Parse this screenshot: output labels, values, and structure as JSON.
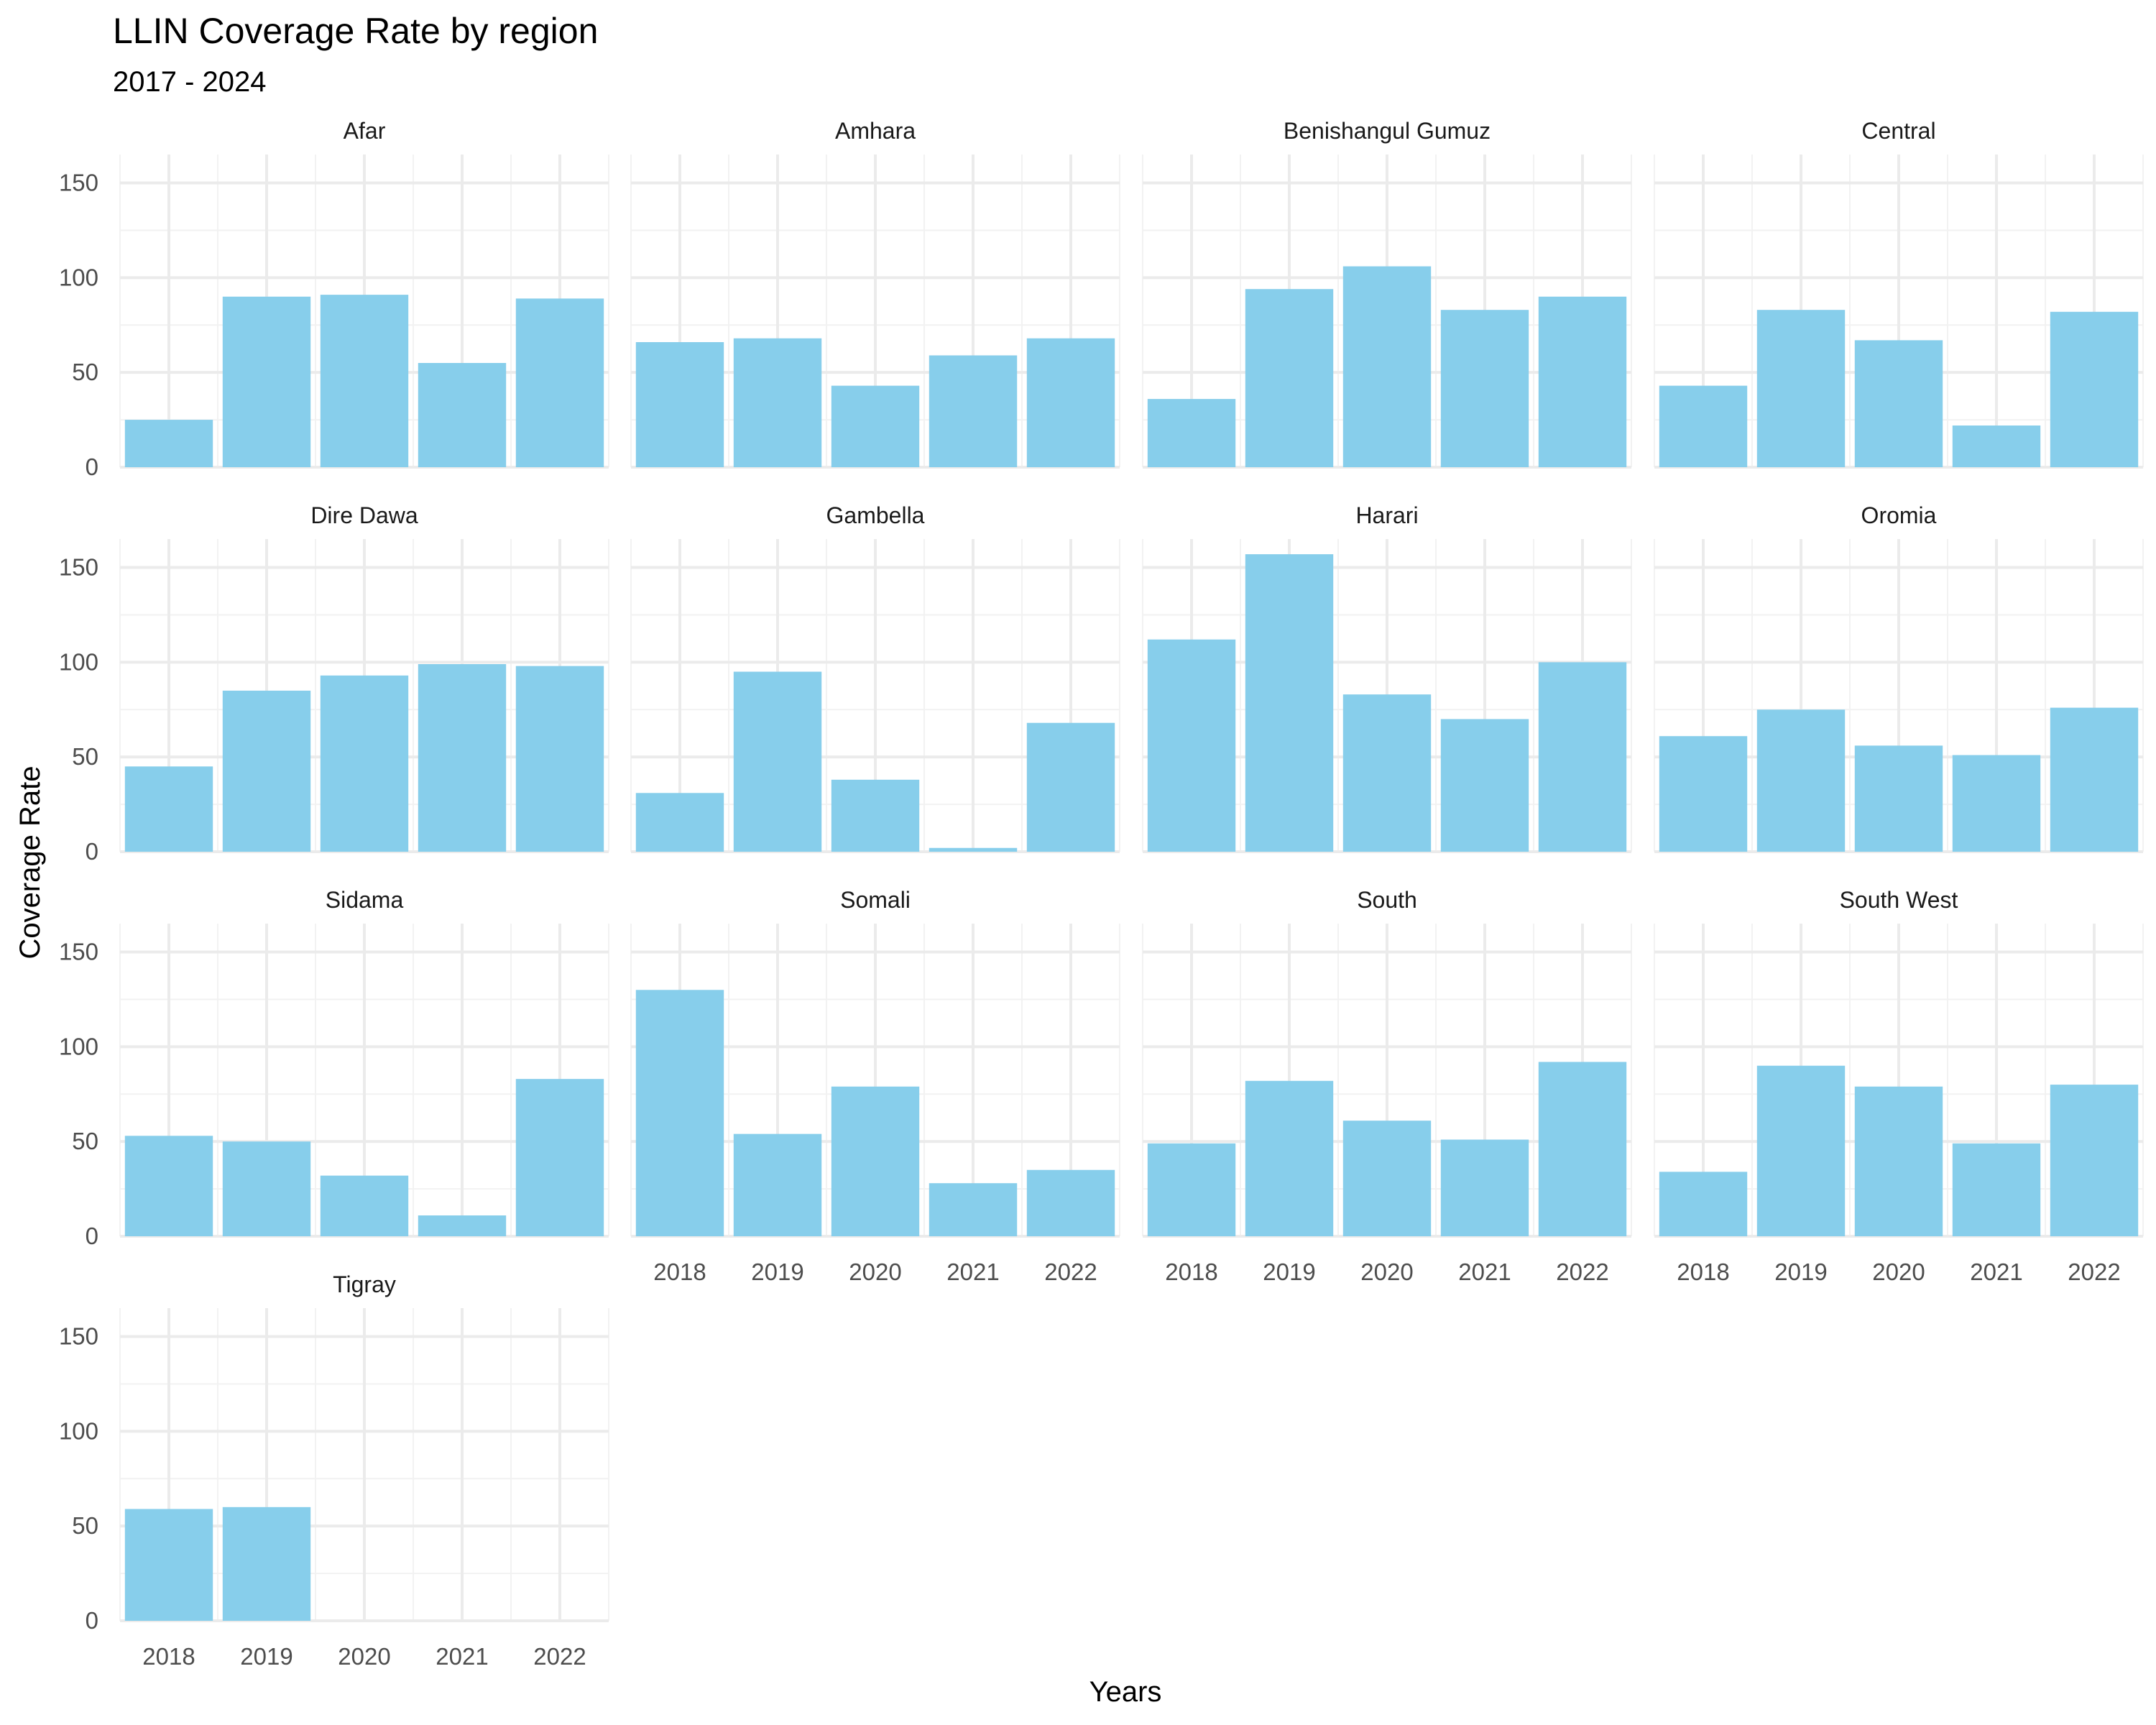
{
  "chart_data": {
    "type": "bar",
    "title": "LLIN Coverage Rate by region",
    "subtitle": "2017 - 2024",
    "xlabel": "Years",
    "ylabel": "Coverage Rate",
    "ylim": [
      0,
      165
    ],
    "y_ticks": [
      0,
      50,
      100,
      150
    ],
    "categories": [
      "2018",
      "2019",
      "2020",
      "2021",
      "2022"
    ],
    "grid": true,
    "bar_color": "#87CEEB",
    "panels": [
      {
        "name": "Afar",
        "values": [
          25,
          90,
          91,
          55,
          89
        ]
      },
      {
        "name": "Amhara",
        "values": [
          66,
          68,
          43,
          59,
          68
        ]
      },
      {
        "name": "Benishangul Gumuz",
        "values": [
          36,
          94,
          106,
          83,
          90
        ]
      },
      {
        "name": "Central",
        "values": [
          43,
          83,
          67,
          22,
          82
        ]
      },
      {
        "name": "Dire Dawa",
        "values": [
          45,
          85,
          93,
          99,
          98
        ]
      },
      {
        "name": "Gambella",
        "values": [
          31,
          95,
          38,
          2,
          68
        ]
      },
      {
        "name": "Harari",
        "values": [
          112,
          157,
          83,
          70,
          100
        ]
      },
      {
        "name": "Oromia",
        "values": [
          61,
          75,
          56,
          51,
          76
        ]
      },
      {
        "name": "Sidama",
        "values": [
          53,
          50,
          32,
          11,
          83
        ]
      },
      {
        "name": "Somali",
        "values": [
          130,
          54,
          79,
          28,
          35
        ]
      },
      {
        "name": "South",
        "values": [
          49,
          82,
          61,
          51,
          92
        ]
      },
      {
        "name": "South West",
        "values": [
          34,
          90,
          79,
          49,
          80
        ]
      },
      {
        "name": "Tigray",
        "values": [
          59,
          60,
          null,
          null,
          null
        ]
      }
    ]
  }
}
